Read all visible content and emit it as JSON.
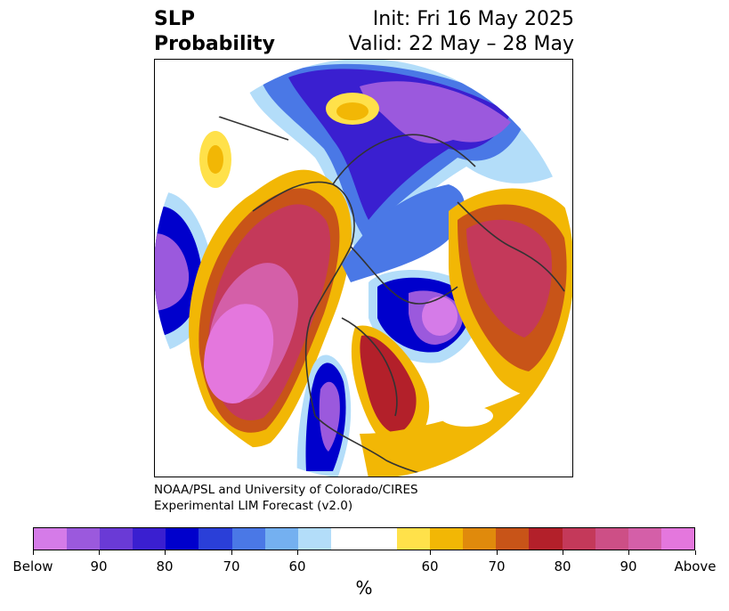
{
  "title": {
    "variable": "SLP",
    "kind": "Probability",
    "init": "Init: Fri 16 May 2025",
    "valid": "Valid: 22 May – 28 May"
  },
  "credit": {
    "line1": "NOAA/PSL and University of Colorado/CIRES",
    "line2": "Experimental LIM Forecast (v2.0)"
  },
  "colorbar": {
    "unit": "%",
    "colors": [
      "#d57be8",
      "#9b59dd",
      "#6a3ad6",
      "#3a1fd0",
      "#0000cc",
      "#2a3fd8",
      "#4a78e6",
      "#74b0f0",
      "#b3ddf9",
      "#ffffff",
      "#ffffff",
      "#ffe14a",
      "#f2b705",
      "#e08a0c",
      "#c85418",
      "#b3202a",
      "#c4395a",
      "#cd4f86",
      "#d45fa8",
      "#e477dd"
    ],
    "labels": [
      "Below",
      "90",
      "80",
      "70",
      "60",
      "60",
      "70",
      "80",
      "90",
      "Above"
    ]
  },
  "map": {
    "colors": {
      "white": "#ffffff",
      "light_blue": "#b3ddf9",
      "sky_blue": "#74b0f0",
      "blue": "#4a78e6",
      "dark_blue": "#0000cc",
      "indigo": "#3a1fd0",
      "violet": "#6a3ad6",
      "purple": "#9b59dd",
      "lilac": "#d57be8",
      "yellow": "#ffe14a",
      "gold": "#f2b705",
      "orange": "#e08a0c",
      "dark_orange": "#c85418",
      "red": "#b3202a",
      "crimson": "#c4395a",
      "rose": "#cd4f86",
      "magenta": "#d45fa8",
      "pink": "#e477dd",
      "coast": "#333333"
    }
  }
}
